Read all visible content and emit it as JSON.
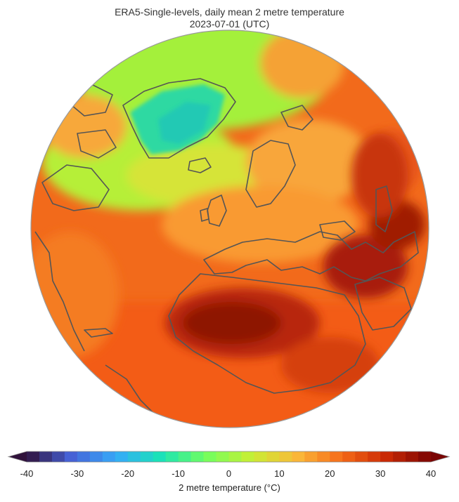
{
  "title": {
    "line1": "ERA5-Single-levels, daily mean 2 metre temperature",
    "line2": "2023-07-01 (UTC)"
  },
  "map": {
    "projection": "orthographic",
    "center": "North Atlantic / Europe",
    "coastline_color": "#555555",
    "palette_anchors": [
      "#30123b",
      "#4662d7",
      "#36aaf9",
      "#1ae4b6",
      "#72fe5e",
      "#c8ef34",
      "#faba39",
      "#f66b19",
      "#ca2a04",
      "#7a0403"
    ]
  },
  "colorbar": {
    "label": "2 metre temperature (°C)",
    "min": -40,
    "max": 40,
    "step": 2.5,
    "extend": "both",
    "ticks": [
      "-40",
      "-30",
      "-20",
      "-10",
      "0",
      "10",
      "20",
      "30",
      "40"
    ]
  }
}
